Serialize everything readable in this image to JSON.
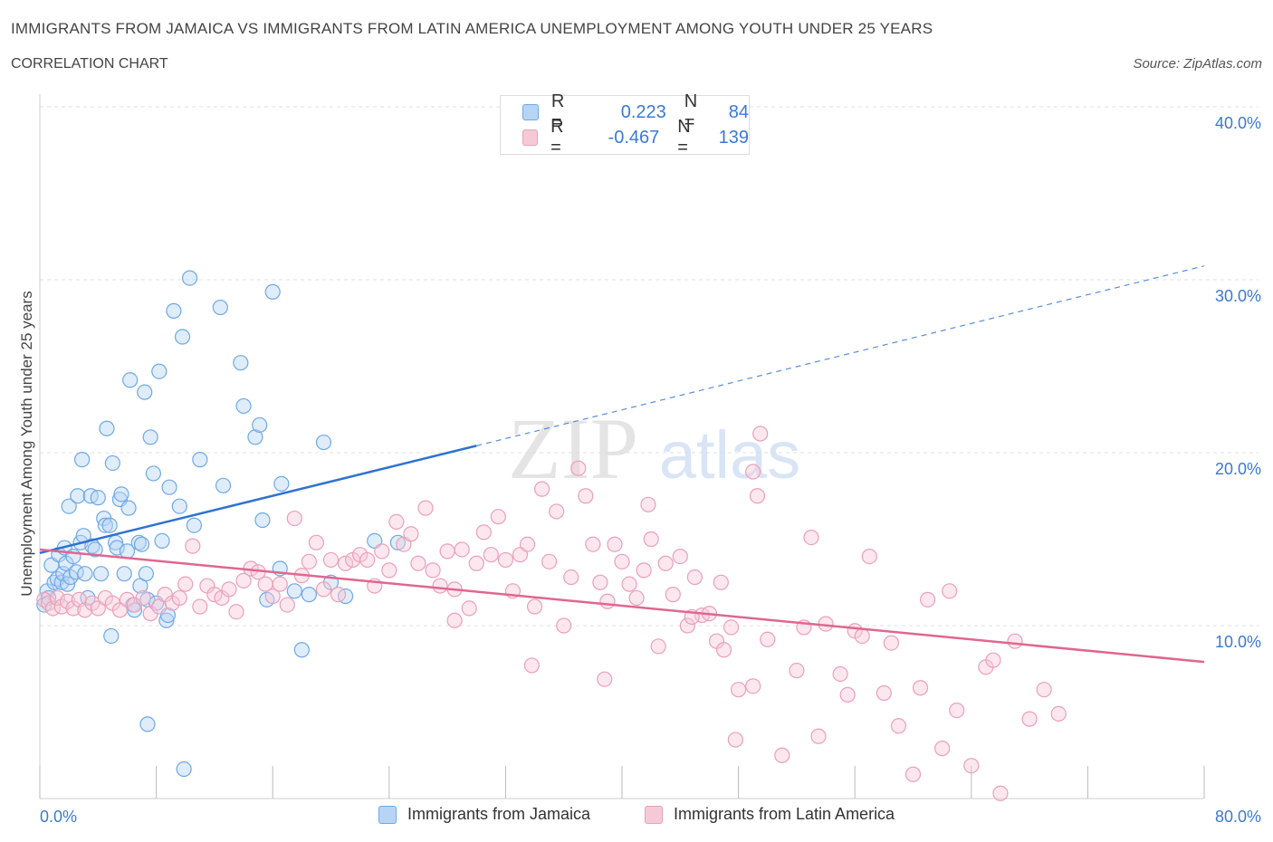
{
  "title": "IMMIGRANTS FROM JAMAICA VS IMMIGRANTS FROM LATIN AMERICA UNEMPLOYMENT AMONG YOUTH UNDER 25 YEARS",
  "subtitle": "CORRELATION CHART",
  "source": "Source: ZipAtlas.com",
  "watermark": {
    "zip": "ZIP",
    "atlas": "atlas"
  },
  "legend": {
    "r_label": "R =",
    "n_label": "N =",
    "rows": [
      {
        "r": "0.223",
        "n": "84"
      },
      {
        "r": "-0.467",
        "n": "139"
      }
    ]
  },
  "chart_data": {
    "type": "scatter",
    "xlabel": "",
    "ylabel": "Unemployment Among Youth under 25 years",
    "xlim": [
      0,
      80
    ],
    "ylim": [
      0,
      40
    ],
    "x_tick_labels": [
      "0.0%",
      "80.0%"
    ],
    "y_ticks": [
      10,
      20,
      30,
      40
    ],
    "y_tick_labels": [
      "10.0%",
      "20.0%",
      "30.0%",
      "40.0%"
    ],
    "grid": true,
    "legend_position": "top-center",
    "series": [
      {
        "name": "Immigrants from Jamaica",
        "color": "#6fa8e8",
        "fill": "#b8d4f5",
        "line_color": "#2f73d0",
        "trend": {
          "x": [
            0,
            30
          ],
          "y": [
            14.2,
            20.4
          ]
        },
        "trend_ext": {
          "x": [
            30,
            80
          ],
          "y": [
            20.4,
            30.8
          ]
        },
        "points": [
          [
            0.3,
            11.2
          ],
          [
            0.5,
            12.0
          ],
          [
            0.6,
            11.6
          ],
          [
            0.8,
            13.5
          ],
          [
            1.0,
            12.5
          ],
          [
            1.2,
            12.7
          ],
          [
            1.3,
            14.1
          ],
          [
            1.5,
            12.5
          ],
          [
            1.6,
            13.0
          ],
          [
            1.7,
            14.5
          ],
          [
            1.8,
            13.6
          ],
          [
            1.9,
            12.4
          ],
          [
            2.0,
            16.9
          ],
          [
            2.1,
            12.8
          ],
          [
            2.3,
            14.0
          ],
          [
            2.5,
            13.1
          ],
          [
            2.6,
            17.5
          ],
          [
            2.8,
            14.8
          ],
          [
            2.9,
            19.6
          ],
          [
            3.0,
            15.2
          ],
          [
            3.1,
            13.0
          ],
          [
            3.3,
            11.6
          ],
          [
            3.5,
            17.5
          ],
          [
            3.6,
            14.6
          ],
          [
            3.8,
            14.4
          ],
          [
            4.0,
            17.4
          ],
          [
            4.2,
            13.0
          ],
          [
            4.4,
            16.2
          ],
          [
            4.5,
            15.8
          ],
          [
            4.6,
            21.4
          ],
          [
            4.8,
            15.8
          ],
          [
            4.9,
            9.4
          ],
          [
            5.0,
            19.4
          ],
          [
            5.2,
            14.8
          ],
          [
            5.3,
            14.5
          ],
          [
            5.5,
            17.3
          ],
          [
            5.6,
            17.6
          ],
          [
            5.8,
            13.0
          ],
          [
            6.0,
            14.3
          ],
          [
            6.1,
            16.8
          ],
          [
            6.2,
            24.2
          ],
          [
            6.4,
            11.2
          ],
          [
            6.5,
            10.9
          ],
          [
            6.8,
            14.8
          ],
          [
            6.9,
            12.3
          ],
          [
            7.0,
            14.7
          ],
          [
            7.2,
            23.5
          ],
          [
            7.3,
            13.0
          ],
          [
            7.4,
            11.5
          ],
          [
            7.6,
            20.9
          ],
          [
            7.8,
            18.8
          ],
          [
            8.0,
            11.3
          ],
          [
            8.2,
            24.7
          ],
          [
            8.4,
            14.9
          ],
          [
            8.7,
            10.3
          ],
          [
            8.8,
            10.6
          ],
          [
            8.9,
            18.0
          ],
          [
            9.2,
            28.2
          ],
          [
            9.6,
            16.9
          ],
          [
            9.8,
            26.7
          ],
          [
            10.3,
            30.1
          ],
          [
            10.6,
            15.8
          ],
          [
            11.0,
            19.6
          ],
          [
            12.4,
            28.4
          ],
          [
            12.6,
            18.1
          ],
          [
            13.8,
            25.2
          ],
          [
            14.0,
            22.7
          ],
          [
            14.8,
            20.9
          ],
          [
            15.1,
            21.6
          ],
          [
            15.3,
            16.1
          ],
          [
            15.6,
            11.5
          ],
          [
            16.0,
            29.3
          ],
          [
            16.5,
            13.3
          ],
          [
            16.6,
            18.2
          ],
          [
            17.5,
            12.0
          ],
          [
            18.0,
            8.6
          ],
          [
            18.5,
            11.8
          ],
          [
            19.5,
            20.6
          ],
          [
            20.0,
            12.5
          ],
          [
            21.0,
            11.7
          ],
          [
            23.0,
            14.9
          ],
          [
            24.6,
            14.8
          ],
          [
            7.4,
            4.3
          ],
          [
            9.9,
            1.7
          ]
        ]
      },
      {
        "name": "Immigrants from Latin America",
        "color": "#eaa0b8",
        "fill": "#f6c9d6",
        "line_color": "#e06690",
        "trend": {
          "x": [
            0,
            80
          ],
          "y": [
            14.4,
            7.9
          ]
        },
        "points": [
          [
            0.3,
            11.5
          ],
          [
            0.6,
            11.3
          ],
          [
            0.9,
            11.0
          ],
          [
            1.2,
            11.6
          ],
          [
            1.5,
            11.1
          ],
          [
            1.9,
            11.4
          ],
          [
            2.3,
            11.0
          ],
          [
            2.7,
            11.5
          ],
          [
            3.1,
            10.9
          ],
          [
            3.6,
            11.3
          ],
          [
            4.0,
            11.0
          ],
          [
            4.5,
            11.6
          ],
          [
            5.0,
            11.3
          ],
          [
            5.5,
            10.9
          ],
          [
            6.0,
            11.5
          ],
          [
            6.5,
            11.2
          ],
          [
            7.1,
            11.6
          ],
          [
            7.6,
            10.7
          ],
          [
            8.2,
            11.1
          ],
          [
            8.6,
            11.8
          ],
          [
            9.1,
            11.3
          ],
          [
            9.6,
            11.6
          ],
          [
            10.0,
            12.4
          ],
          [
            10.5,
            14.6
          ],
          [
            11.0,
            11.1
          ],
          [
            11.5,
            12.3
          ],
          [
            12.0,
            11.8
          ],
          [
            12.5,
            11.6
          ],
          [
            13.0,
            12.1
          ],
          [
            13.5,
            10.8
          ],
          [
            14.0,
            12.6
          ],
          [
            14.5,
            13.3
          ],
          [
            15.0,
            13.1
          ],
          [
            15.5,
            12.4
          ],
          [
            16.0,
            11.7
          ],
          [
            16.5,
            12.4
          ],
          [
            17.0,
            11.2
          ],
          [
            17.5,
            16.2
          ],
          [
            18.0,
            12.9
          ],
          [
            18.5,
            13.7
          ],
          [
            19.0,
            14.8
          ],
          [
            19.5,
            12.1
          ],
          [
            20.0,
            13.8
          ],
          [
            20.5,
            11.8
          ],
          [
            21.0,
            13.6
          ],
          [
            21.5,
            13.8
          ],
          [
            22.0,
            14.1
          ],
          [
            22.5,
            13.8
          ],
          [
            23.0,
            12.3
          ],
          [
            23.5,
            14.3
          ],
          [
            24.0,
            13.2
          ],
          [
            24.5,
            16.0
          ],
          [
            25.0,
            14.7
          ],
          [
            25.5,
            15.3
          ],
          [
            26.0,
            13.6
          ],
          [
            26.5,
            16.8
          ],
          [
            27.0,
            13.2
          ],
          [
            27.5,
            12.3
          ],
          [
            28.0,
            14.3
          ],
          [
            28.5,
            12.1
          ],
          [
            29.0,
            14.4
          ],
          [
            29.5,
            11.0
          ],
          [
            30.0,
            13.6
          ],
          [
            30.5,
            15.4
          ],
          [
            31.0,
            14.1
          ],
          [
            31.5,
            16.3
          ],
          [
            32.0,
            13.8
          ],
          [
            32.5,
            12.0
          ],
          [
            33.0,
            14.1
          ],
          [
            33.5,
            14.7
          ],
          [
            34.0,
            11.1
          ],
          [
            34.5,
            17.9
          ],
          [
            35.0,
            13.7
          ],
          [
            35.5,
            16.6
          ],
          [
            36.0,
            10.0
          ],
          [
            36.5,
            12.8
          ],
          [
            37.0,
            19.1
          ],
          [
            37.5,
            17.5
          ],
          [
            38.0,
            14.7
          ],
          [
            38.5,
            12.5
          ],
          [
            39.0,
            11.4
          ],
          [
            39.5,
            14.7
          ],
          [
            40.0,
            13.7
          ],
          [
            40.5,
            12.4
          ],
          [
            41.0,
            11.6
          ],
          [
            41.5,
            13.2
          ],
          [
            42.0,
            15.0
          ],
          [
            42.5,
            8.8
          ],
          [
            43.0,
            13.6
          ],
          [
            43.5,
            11.8
          ],
          [
            44.0,
            14.0
          ],
          [
            44.5,
            10.0
          ],
          [
            45.0,
            12.8
          ],
          [
            45.5,
            10.6
          ],
          [
            46.0,
            10.7
          ],
          [
            46.5,
            9.1
          ],
          [
            47.0,
            8.6
          ],
          [
            47.5,
            9.9
          ],
          [
            48.0,
            6.3
          ],
          [
            49.0,
            6.5
          ],
          [
            50.0,
            9.2
          ],
          [
            51.0,
            2.5
          ],
          [
            52.0,
            7.4
          ],
          [
            53.0,
            15.1
          ],
          [
            54.0,
            10.1
          ],
          [
            55.0,
            7.2
          ],
          [
            56.0,
            9.7
          ],
          [
            57.0,
            14.0
          ],
          [
            58.0,
            6.1
          ],
          [
            59.0,
            4.2
          ],
          [
            60.0,
            1.4
          ],
          [
            61.0,
            11.5
          ],
          [
            62.0,
            2.9
          ],
          [
            63.0,
            5.1
          ],
          [
            64.0,
            1.9
          ],
          [
            65.0,
            7.6
          ],
          [
            66.0,
            0.3
          ],
          [
            67.0,
            9.1
          ],
          [
            68.0,
            4.6
          ],
          [
            69.0,
            6.3
          ],
          [
            70.0,
            4.9
          ],
          [
            49.5,
            21.1
          ],
          [
            49.0,
            18.9
          ],
          [
            49.3,
            17.5
          ],
          [
            60.5,
            6.4
          ],
          [
            65.5,
            8.0
          ],
          [
            44.8,
            10.5
          ],
          [
            47.8,
            3.4
          ],
          [
            53.5,
            3.6
          ],
          [
            56.5,
            9.4
          ],
          [
            38.8,
            6.9
          ],
          [
            41.8,
            17.0
          ],
          [
            33.8,
            7.7
          ],
          [
            52.5,
            9.9
          ],
          [
            46.8,
            12.5
          ],
          [
            28.5,
            10.3
          ],
          [
            62.5,
            12.0
          ],
          [
            58.5,
            9.0
          ],
          [
            55.5,
            6.0
          ]
        ]
      }
    ]
  }
}
